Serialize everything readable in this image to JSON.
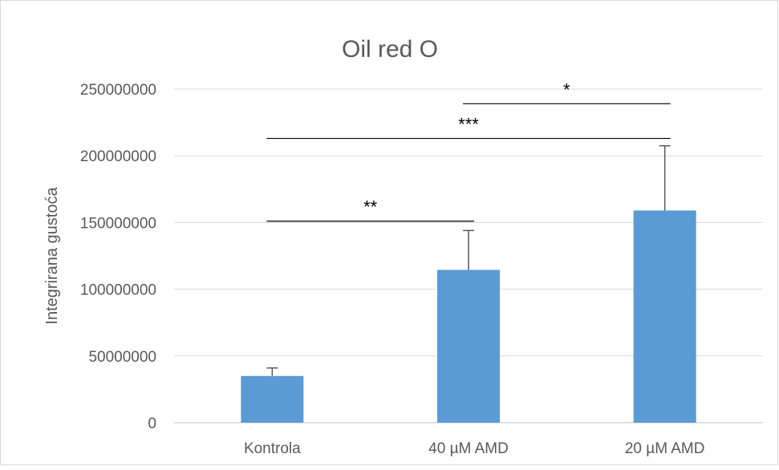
{
  "chart_data": {
    "type": "bar",
    "title": "Oil red O",
    "xlabel": "",
    "ylabel": "Integrirana gustoća",
    "categories": [
      "Kontrola",
      "40 µM AMD",
      "20 µM AMD"
    ],
    "values": [
      35000000,
      114500000,
      159000000
    ],
    "error_upper": [
      6000000,
      29500000,
      48500000
    ],
    "ylim": [
      0,
      250000000
    ],
    "yticks": [
      0,
      50000000,
      100000000,
      150000000,
      200000000,
      250000000
    ],
    "ytick_labels": [
      "0",
      "50000000",
      "100000000",
      "150000000",
      "200000000",
      "250000000"
    ],
    "grid": true,
    "legend": "none",
    "bar_color": "#5b9bd5",
    "significance": [
      {
        "from": 0,
        "to": 1,
        "label": "**",
        "y": 151000000
      },
      {
        "from": 0,
        "to": 2,
        "label": "***",
        "y": 213000000
      },
      {
        "from": 1,
        "to": 2,
        "label": "*",
        "y": 239000000
      }
    ]
  }
}
